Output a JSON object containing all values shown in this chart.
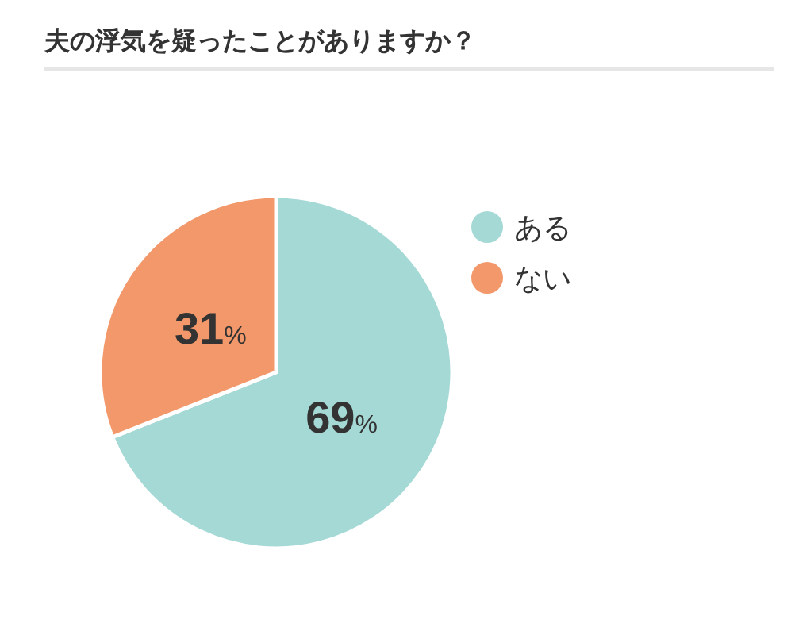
{
  "chart_data": {
    "type": "pie",
    "title": "夫の浮気を疑ったことがありますか？",
    "categories": [
      "ある",
      "ない"
    ],
    "values": [
      69,
      31
    ],
    "colors": [
      "#a5d9d5",
      "#f2986a"
    ],
    "value_labels": [
      "69%",
      "31%"
    ],
    "legend": "right"
  }
}
